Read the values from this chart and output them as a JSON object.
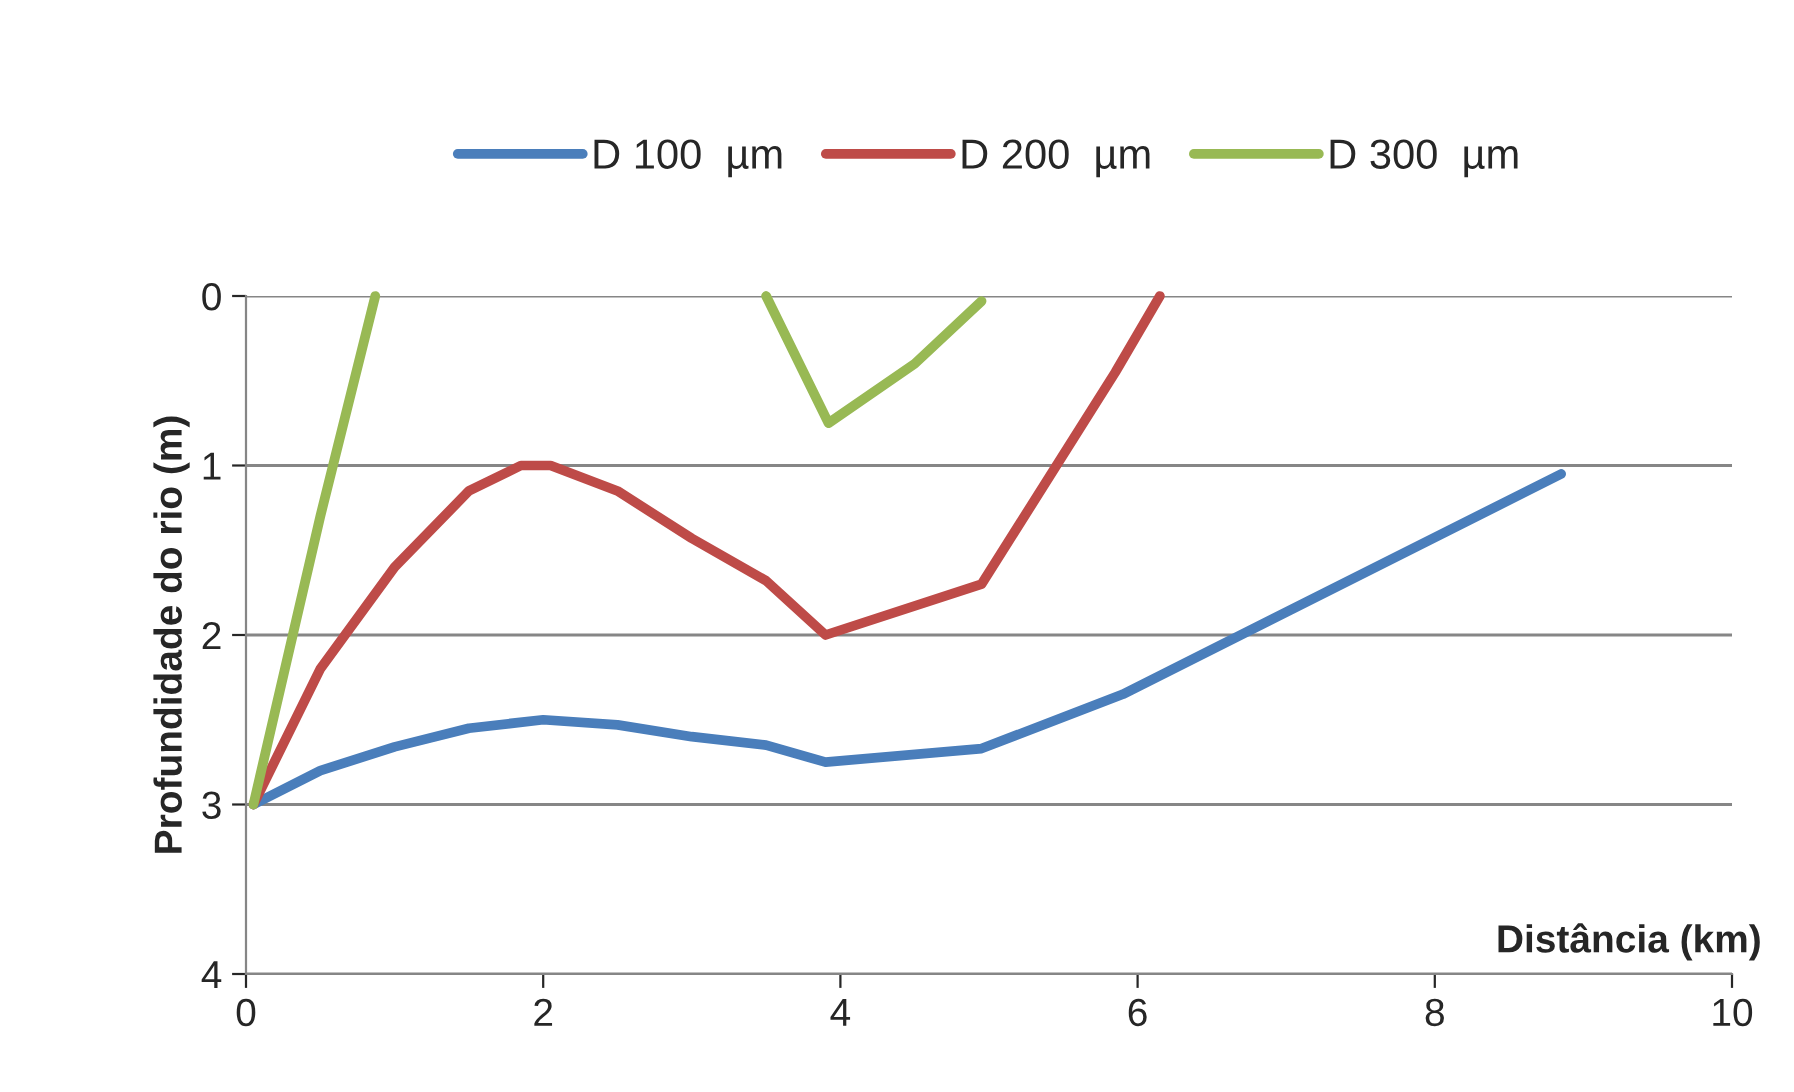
{
  "chart_data": {
    "type": "line",
    "xlabel": "Distância (km)",
    "ylabel": "Profundidade do rio (m)",
    "xlim": [
      0,
      10
    ],
    "xticks": [
      0,
      2,
      4,
      6,
      8,
      10
    ],
    "ylim": [
      4,
      0
    ],
    "yticks": [
      0,
      1,
      2,
      3,
      4
    ],
    "grid": "y",
    "legend": "top",
    "marker": "none",
    "line_style": "solid",
    "series": [
      {
        "name": "D 100  µm",
        "color": "#4a7ebb",
        "x": [
          0.05,
          0.5,
          1,
          1.5,
          2,
          2.5,
          3,
          3.5,
          3.9,
          4.95,
          5.9,
          8.85
        ],
        "values": [
          3.0,
          2.8,
          2.66,
          2.55,
          2.5,
          2.53,
          2.6,
          2.65,
          2.75,
          2.67,
          2.35,
          1.05
        ]
      },
      {
        "name": "D 200  µm",
        "color": "#be4b48",
        "x": [
          0.05,
          0.5,
          1,
          1.5,
          1.85,
          2.05,
          2.5,
          3.0,
          3.5,
          3.9,
          4.95,
          5.85,
          6.15
        ],
        "values": [
          3.0,
          2.2,
          1.6,
          1.15,
          1.0,
          1.0,
          1.15,
          1.43,
          1.68,
          2.0,
          1.7,
          0.45,
          0.0
        ]
      },
      {
        "name": "D 300  µm",
        "color": "#98b954",
        "x": [
          0.05,
          0.5,
          0.87,
          2.2,
          3.5,
          3.92,
          4.5,
          4.95
        ],
        "values": [
          3.0,
          1.3,
          0.0,
          null,
          0.0,
          0.75,
          0.4,
          0.03
        ]
      }
    ]
  }
}
